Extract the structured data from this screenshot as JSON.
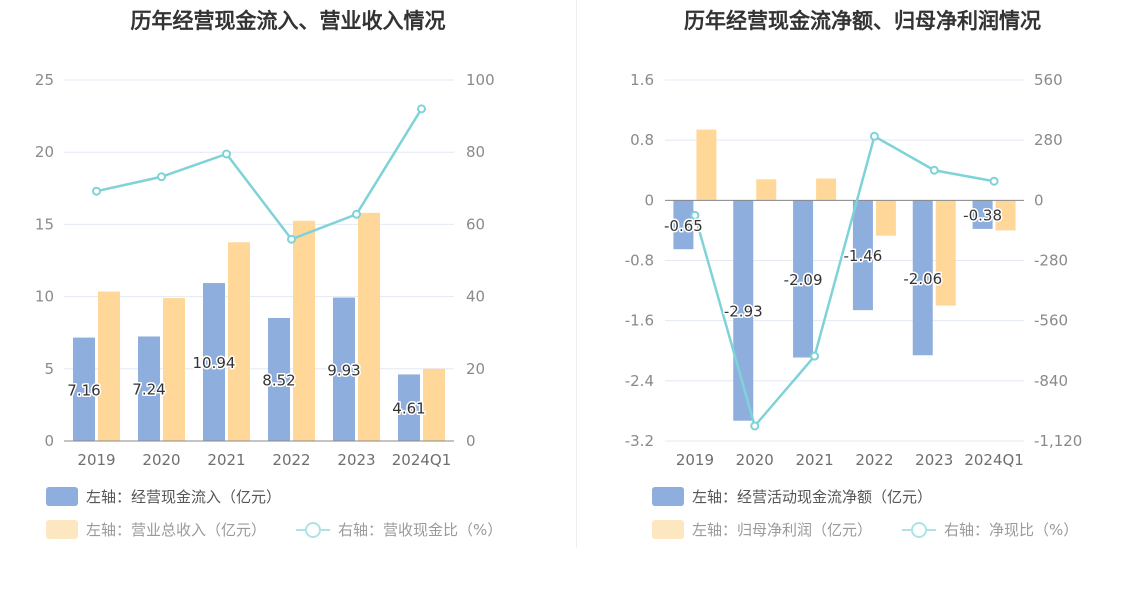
{
  "colors": {
    "bar_primary": "#8eaedd",
    "bar_secondary": "#ffd899",
    "bar_secondary_legend": "#fde7c0",
    "line": "#7fd3d8",
    "grid": "#e3e8f3",
    "axis": "#888888",
    "legend_text_dark": "#555555",
    "legend_text_light": "#9a9a9a"
  },
  "chart_data": [
    {
      "type": "bar",
      "title": "历年经营现金流入、营业收入情况",
      "categories": [
        "2019",
        "2020",
        "2021",
        "2022",
        "2023",
        "2024Q1"
      ],
      "left_axis": {
        "ticks": [
          "0",
          "5",
          "10",
          "15",
          "20",
          "25"
        ],
        "min": 0,
        "max": 25
      },
      "right_axis": {
        "ticks": [
          "0",
          "20",
          "40",
          "60",
          "80",
          "100"
        ],
        "min": 0,
        "max": 100
      },
      "grid": true,
      "legend_position": "bottom-left",
      "series": [
        {
          "name": "左轴：经营现金流入（亿元）",
          "kind": "bar",
          "axis": "left",
          "values": [
            7.16,
            7.24,
            10.94,
            8.52,
            9.93,
            4.61
          ],
          "labels": [
            "7.16",
            "7.24",
            "10.94",
            "8.52",
            "9.93",
            "4.61"
          ]
        },
        {
          "name": "左轴：营业总收入（亿元）",
          "kind": "bar",
          "axis": "left",
          "values": [
            10.35,
            9.9,
            13.76,
            15.25,
            15.8,
            5.0
          ]
        },
        {
          "name": "右轴：营收现金比（%）",
          "kind": "line",
          "axis": "right",
          "values": [
            69.2,
            73.2,
            79.5,
            55.9,
            62.8,
            92.0
          ]
        }
      ]
    },
    {
      "type": "bar",
      "title": "历年经营现金流净额、归母净利润情况",
      "categories": [
        "2019",
        "2020",
        "2021",
        "2022",
        "2023",
        "2024Q1"
      ],
      "left_axis": {
        "ticks": [
          "-3.2",
          "-2.4",
          "-1.6",
          "-0.8",
          "0",
          "0.8",
          "1.6"
        ],
        "min": -3.2,
        "max": 1.6
      },
      "right_axis": {
        "ticks": [
          "-1,120",
          "-840",
          "-560",
          "-280",
          "0",
          "280",
          "560"
        ],
        "min": -1120,
        "max": 560
      },
      "grid": true,
      "legend_position": "bottom-left",
      "series": [
        {
          "name": "左轴：经营活动现金流净额（亿元）",
          "kind": "bar",
          "axis": "left",
          "values": [
            -0.65,
            -2.93,
            -2.09,
            -1.46,
            -2.06,
            -0.38
          ],
          "labels": [
            "-0.65",
            "-2.93",
            "-2.09",
            "-1.46",
            "-2.06",
            "-0.38"
          ]
        },
        {
          "name": "左轴：归母净利润（亿元）",
          "kind": "bar",
          "axis": "left",
          "values": [
            0.94,
            0.28,
            0.29,
            -0.47,
            -1.4,
            -0.4
          ]
        },
        {
          "name": "右轴：净现比（%）",
          "kind": "line",
          "axis": "right",
          "values": [
            -70,
            -1050,
            -725,
            298,
            140,
            89
          ]
        }
      ]
    }
  ]
}
